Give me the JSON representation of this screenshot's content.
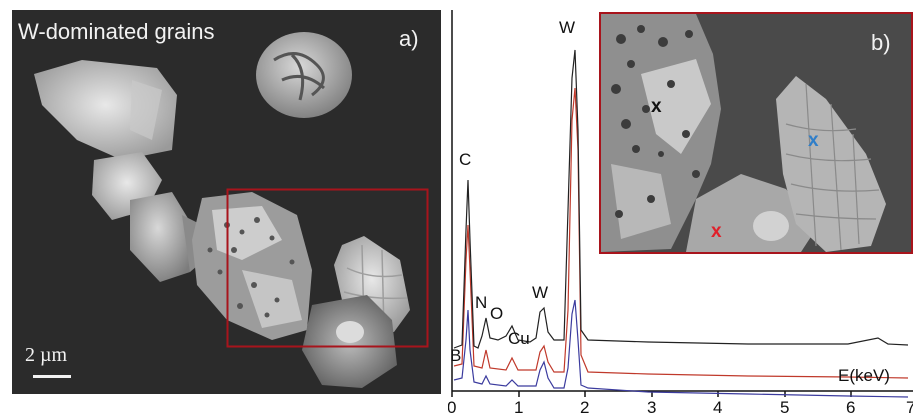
{
  "panel_a": {
    "title": "W-dominated grains",
    "letter": "a)",
    "scale_label": "2 µm"
  },
  "panel_b": {
    "letter": "b)",
    "peaks": {
      "W_main": "W",
      "C": "C",
      "N": "N",
      "O": "O",
      "W_small": "W",
      "Cu": "Cu",
      "B": "B"
    },
    "xlabel": "E(keV)",
    "ticks": [
      "0",
      "1",
      "2",
      "3",
      "4",
      "5",
      "6",
      "7"
    ],
    "markers": [
      "x",
      "x",
      "x"
    ]
  },
  "colors": {
    "frame": "#a8141c",
    "black_spectrum": "#222222",
    "red_spectrum": "#c0392b",
    "blue_spectrum": "#3b3b9e",
    "marker_black": "#111111",
    "marker_blue": "#2f7ec9",
    "marker_red": "#e0202a"
  }
}
